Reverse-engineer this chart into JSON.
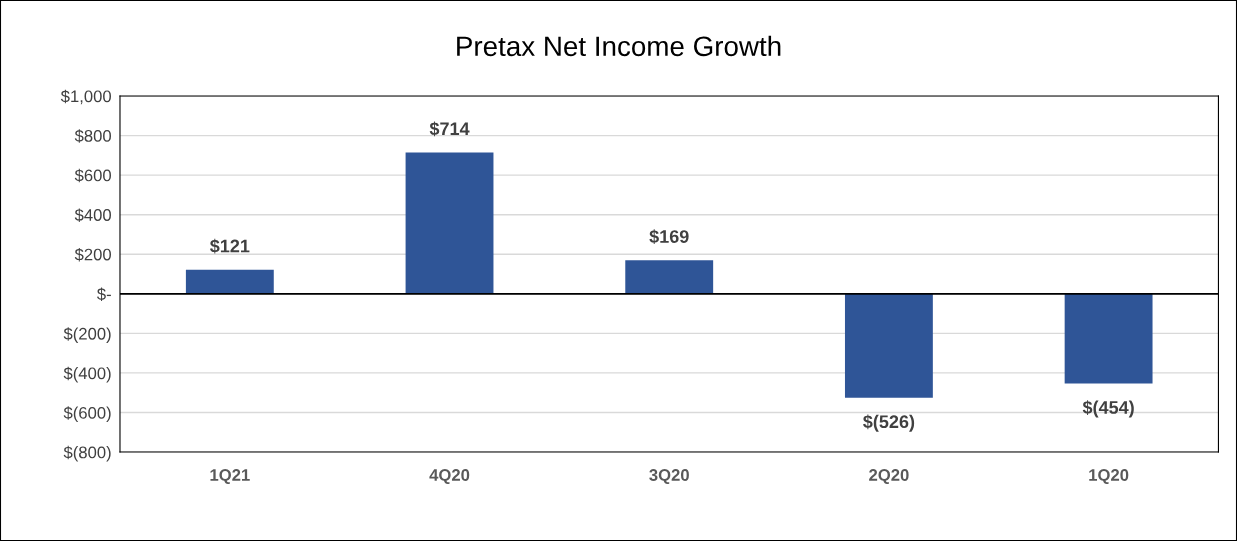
{
  "chart_data": {
    "type": "bar",
    "title": "Pretax Net Income Growth",
    "categories": [
      "1Q21",
      "4Q20",
      "3Q20",
      "2Q20",
      "1Q20"
    ],
    "series": [
      {
        "color": "#2f5597",
        "values": [
          121,
          714,
          169,
          -526,
          -454
        ],
        "value_labels": [
          "$121",
          "$714",
          "$169",
          "$(526)",
          "$(454)"
        ]
      }
    ],
    "ylim": [
      -800,
      1000
    ],
    "yticks": [
      {
        "value": 1000,
        "label": "$1,000"
      },
      {
        "value": 800,
        "label": "$800"
      },
      {
        "value": 600,
        "label": "$600"
      },
      {
        "value": 400,
        "label": "$400"
      },
      {
        "value": 200,
        "label": "$200"
      },
      {
        "value": 0,
        "label": "$-"
      },
      {
        "value": -200,
        "label": "$(200)"
      },
      {
        "value": -400,
        "label": "$(400)"
      },
      {
        "value": -600,
        "label": "$(600)"
      },
      {
        "value": -800,
        "label": "$(800)"
      }
    ],
    "grid": "y",
    "legend": false
  }
}
